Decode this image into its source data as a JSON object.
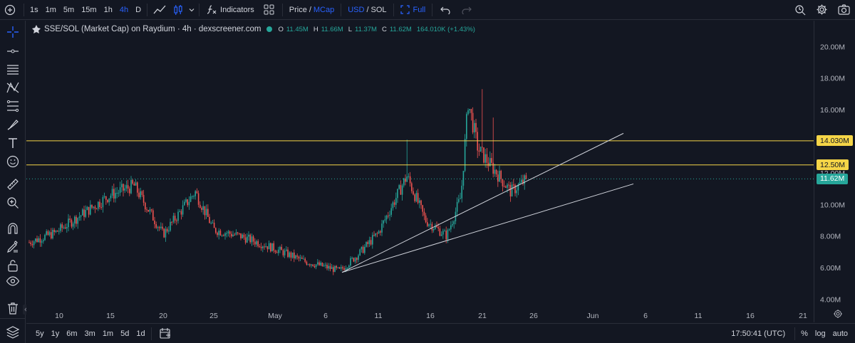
{
  "toolbar": {
    "intervals": [
      "1s",
      "1m",
      "5m",
      "15m",
      "1h",
      "4h",
      "D"
    ],
    "active_interval": "4h",
    "indicators_label": "Indicators",
    "price_label": "Price",
    "slash": "/",
    "mcap_label": "MCap",
    "usd_label": "USD",
    "sol_label": "SOL",
    "full_label": "Full"
  },
  "legend": {
    "title": "SSE/SOL (Market Cap) on Raydium · 4h · dexscreener.com",
    "o_label": "O",
    "o_val": "11.45M",
    "h_label": "H",
    "h_val": "11.66M",
    "l_label": "L",
    "l_val": "11.37M",
    "c_label": "C",
    "c_val": "11.62M",
    "change": "164.010K (+1.43%)"
  },
  "price_axis": {
    "ticks": [
      "20.00M",
      "18.00M",
      "16.00M",
      "14.00M",
      "12.00M",
      "10.00M",
      "8.00M",
      "6.00M",
      "4.00M"
    ],
    "tags": [
      {
        "label": "14.030M",
        "bg": "#f5d547",
        "fg": "#131722",
        "value": 14.03
      },
      {
        "label": "12.50M",
        "bg": "#f5d547",
        "fg": "#131722",
        "value": 12.5
      },
      {
        "label": "11.62M",
        "bg": "#26a69a",
        "fg": "#ffffff",
        "value": 11.62
      }
    ]
  },
  "time_axis": {
    "ticks": [
      "10",
      "15",
      "20",
      "25",
      "May",
      "6",
      "11",
      "16",
      "21",
      "26",
      "Jun",
      "6",
      "11",
      "16",
      "21"
    ]
  },
  "bottom": {
    "ranges": [
      "5y",
      "1y",
      "6m",
      "3m",
      "1m",
      "5d",
      "1d"
    ],
    "clock": "17:50:41 (UTC)",
    "percent": "%",
    "log": "log",
    "auto": "auto"
  },
  "colors": {
    "up": "#26a69a",
    "down": "#ef5350",
    "horizontal_line": "#f5d547",
    "trend_line": "#d1d4dc"
  },
  "chart_data": {
    "type": "candlestick",
    "y_unit": "market cap (USD)",
    "ylim": [
      3.3,
      21.5
    ],
    "horizontal_levels": [
      14.03,
      12.5
    ],
    "last_price": 11.62,
    "close_path": [
      [
        "10",
        7.6
      ],
      [
        "12",
        8.2
      ],
      [
        "15",
        10.6
      ],
      [
        "17",
        11.2
      ],
      [
        "20",
        8.1
      ],
      [
        "23",
        10.8
      ],
      [
        "25",
        8.4
      ],
      [
        "28",
        8.0
      ],
      [
        "May",
        7.2
      ],
      [
        "May 4",
        6.4
      ],
      [
        "May 7",
        5.8
      ],
      [
        "May 9",
        6.8
      ],
      [
        "May 11",
        8.2
      ],
      [
        "May 13",
        11.8
      ],
      [
        "May 15",
        9.0
      ],
      [
        "May 18",
        8.0
      ],
      [
        "May 19",
        10.5
      ],
      [
        "May 20",
        16.5
      ],
      [
        "May 21",
        13.5
      ],
      [
        "May 22",
        12.0
      ],
      [
        "May 23",
        10.8
      ],
      [
        "May 25",
        11.62
      ]
    ]
  }
}
